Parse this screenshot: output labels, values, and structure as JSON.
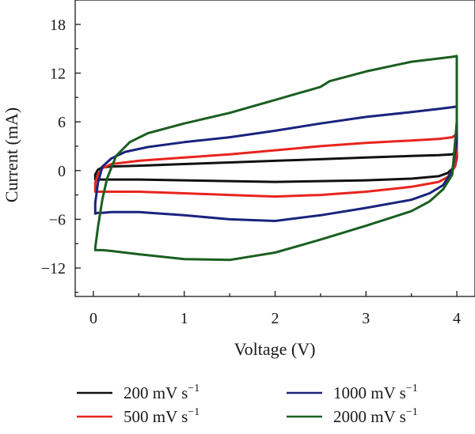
{
  "chart_data": {
    "type": "line",
    "xlabel": "Voltage (V)",
    "ylabel": "Current (mA)",
    "xlim": [
      -0.2,
      4.2
    ],
    "ylim": [
      -15.5,
      21
    ],
    "xticks": [
      "0",
      "1",
      "2",
      "3",
      "4"
    ],
    "yticks": [
      "−12",
      "−6",
      "0",
      "6",
      "12",
      "18"
    ],
    "legend_placement": "bottom",
    "grid": false,
    "series": [
      {
        "name": "200 mV s",
        "name_sup": "−1",
        "color": "#111111",
        "x": [
          0.02,
          0.05,
          0.1,
          0.2,
          0.5,
          1,
          1.5,
          2,
          2.5,
          3,
          3.5,
          3.8,
          3.95,
          4,
          4,
          3.98,
          3.9,
          3.8,
          3.5,
          3,
          2.5,
          2,
          1.5,
          1,
          0.5,
          0.2,
          0.1,
          0.05,
          0.02,
          0.02
        ],
        "y": [
          -0.5,
          0.1,
          0.4,
          0.5,
          0.6,
          0.8,
          1.0,
          1.2,
          1.4,
          1.6,
          1.8,
          1.9,
          2.0,
          2.3,
          1.6,
          0.5,
          -0.3,
          -0.7,
          -1.0,
          -1.2,
          -1.3,
          -1.4,
          -1.3,
          -1.2,
          -1.1,
          -1.1,
          -1.1,
          -1.1,
          -1.1,
          -0.5
        ]
      },
      {
        "name": "500 mV s",
        "name_sup": "−1",
        "color": "#e8241e",
        "x": [
          0.02,
          0.05,
          0.1,
          0.2,
          0.5,
          1,
          1.5,
          2,
          2.5,
          3,
          3.5,
          3.8,
          3.95,
          4,
          4,
          3.98,
          3.9,
          3.8,
          3.5,
          3,
          2.5,
          2,
          1.5,
          1,
          0.5,
          0.2,
          0.1,
          0.05,
          0.02,
          0.02
        ],
        "y": [
          -1.5,
          -0.5,
          0.3,
          0.8,
          1.2,
          1.6,
          2.0,
          2.5,
          3.0,
          3.4,
          3.7,
          3.9,
          4.1,
          4.5,
          2.5,
          0.5,
          -0.8,
          -1.4,
          -2.0,
          -2.6,
          -3.0,
          -3.2,
          -3.0,
          -2.8,
          -2.6,
          -2.6,
          -2.6,
          -2.6,
          -2.6,
          -1.5
        ]
      },
      {
        "name": "1000 mV s",
        "name_sup": "−1",
        "color": "#1a237e",
        "x": [
          0.02,
          0.05,
          0.1,
          0.2,
          0.35,
          0.6,
          1,
          1.5,
          2,
          2.5,
          3,
          3.5,
          3.8,
          3.95,
          4,
          4,
          3.95,
          3.85,
          3.7,
          3.5,
          3,
          2.5,
          2,
          1.5,
          1,
          0.5,
          0.2,
          0.1,
          0.05,
          0.02,
          0.02
        ],
        "y": [
          -4,
          -1.5,
          0.5,
          1.5,
          2.3,
          2.9,
          3.5,
          4.1,
          4.9,
          5.8,
          6.6,
          7.2,
          7.6,
          7.8,
          7.9,
          3.5,
          0,
          -1.8,
          -2.8,
          -3.6,
          -4.6,
          -5.5,
          -6.2,
          -6.0,
          -5.5,
          -5.1,
          -5.1,
          -5.2,
          -5.2,
          -5.3,
          -4
        ]
      },
      {
        "name": "2000 mV s",
        "name_sup": "−1",
        "color": "#1b5e20",
        "x": [
          0.02,
          0.05,
          0.1,
          0.15,
          0.25,
          0.4,
          0.6,
          1,
          1.5,
          2,
          2.5,
          2.6,
          3,
          3.5,
          3.8,
          3.95,
          4,
          4,
          3.95,
          3.85,
          3.7,
          3.5,
          3,
          2.5,
          2,
          1.5,
          1,
          0.5,
          0.2,
          0.1,
          0.05,
          0.02,
          0.02
        ],
        "y": [
          -9.5,
          -7,
          -3.5,
          -1,
          1.8,
          3.5,
          4.6,
          5.8,
          7.1,
          8.7,
          10.3,
          11.0,
          12.2,
          13.4,
          13.8,
          14.0,
          14.1,
          6,
          -0.5,
          -2.3,
          -3.8,
          -5.0,
          -6.8,
          -8.5,
          -10.1,
          -11.0,
          -10.9,
          -10.3,
          -9.9,
          -9.8,
          -9.8,
          -9.8,
          -9.5
        ]
      }
    ]
  }
}
